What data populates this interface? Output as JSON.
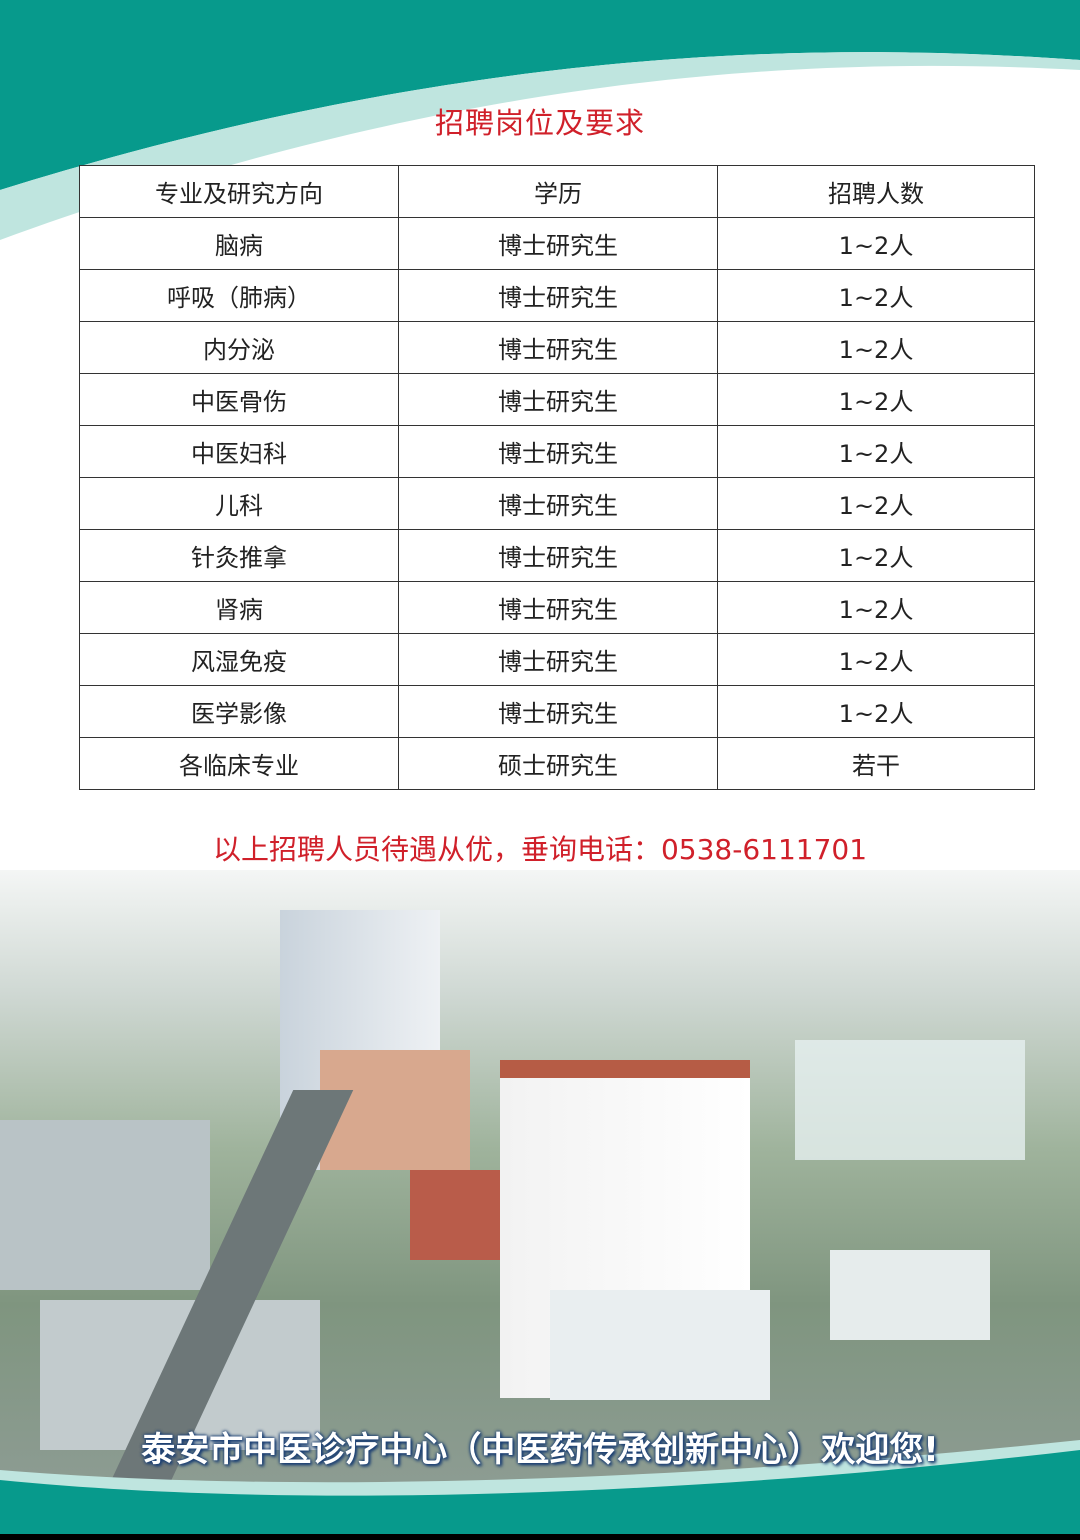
{
  "title": "招聘岗位及要求",
  "table": {
    "headers": [
      "专业及研究方向",
      "学历",
      "招聘人数"
    ],
    "rows": [
      [
        "脑病",
        "博士研究生",
        "1~2人"
      ],
      [
        "呼吸（肺病）",
        "博士研究生",
        "1~2人"
      ],
      [
        "内分泌",
        "博士研究生",
        "1~2人"
      ],
      [
        "中医骨伤",
        "博士研究生",
        "1~2人"
      ],
      [
        "中医妇科",
        "博士研究生",
        "1~2人"
      ],
      [
        "儿科",
        "博士研究生",
        "1~2人"
      ],
      [
        "针灸推拿",
        "博士研究生",
        "1~2人"
      ],
      [
        "肾病",
        "博士研究生",
        "1~2人"
      ],
      [
        "风湿免疫",
        "博士研究生",
        "1~2人"
      ],
      [
        "医学影像",
        "博士研究生",
        "1~2人"
      ],
      [
        "各临床专业",
        "硕士研究生",
        "若干"
      ]
    ]
  },
  "note": "以上招聘人员待遇从优，垂询电话：0538-6111701",
  "welcome": "泰安市中医诊疗中心（中医药传承创新中心）欢迎您!",
  "colors": {
    "teal": "#079a8c",
    "light_teal": "#bfe5df",
    "red": "#d0202a"
  }
}
